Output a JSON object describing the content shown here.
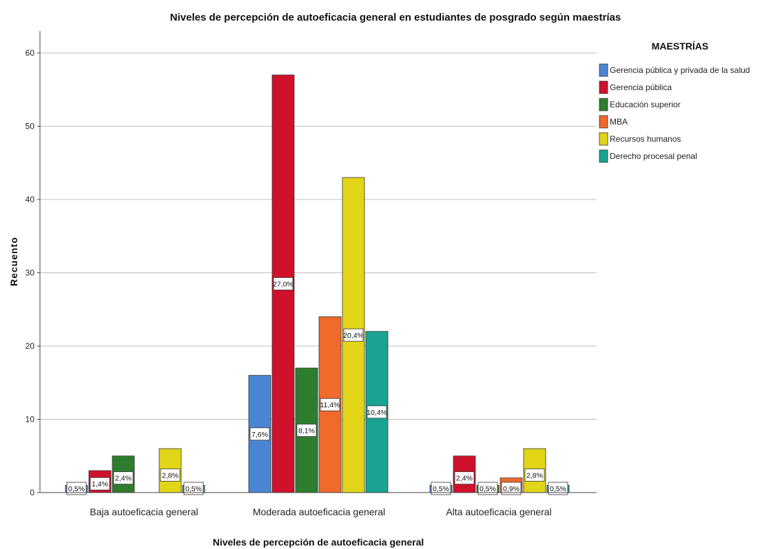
{
  "chart_data": {
    "type": "bar",
    "title": "Niveles de percepción de autoeficacia general en estudiantes de posgrado según maestrías",
    "xlabel": "Niveles de percepción de autoeficacia general",
    "ylabel": "Recuento",
    "ylim": [
      0,
      60
    ],
    "yticks": [
      0,
      10,
      20,
      30,
      40,
      50,
      60
    ],
    "grid": true,
    "legend_position": "top-right",
    "legend_title": "MAESTRÍAS",
    "categories": [
      "Baja autoeficacia general",
      "Moderada autoeficacia general",
      "Alta autoeficacia general"
    ],
    "series": [
      {
        "name": "Gerencia pública y privada de la salud",
        "color": "#4a86d4",
        "values": [
          1,
          16,
          1
        ],
        "labels": [
          "0,5%",
          "7,6%",
          "0,5%"
        ]
      },
      {
        "name": "Gerencia pública",
        "color": "#d0112b",
        "values": [
          3,
          57,
          5
        ],
        "labels": [
          "1,4%",
          "27,0%",
          "2,4%"
        ]
      },
      {
        "name": "Educación superior",
        "color": "#2e7d2e",
        "values": [
          5,
          17,
          1
        ],
        "labels": [
          "2,4%",
          "8,1%",
          "0,5%"
        ]
      },
      {
        "name": "MBA",
        "color": "#ef6a2b",
        "values": [
          0,
          24,
          2
        ],
        "labels": [
          "",
          "11,4%",
          "0,9%"
        ]
      },
      {
        "name": "Recursos humanos",
        "color": "#e2d518",
        "values": [
          6,
          43,
          6
        ],
        "labels": [
          "2,8%",
          "20,4%",
          "2,8%"
        ]
      },
      {
        "name": "Derecho procesal penal",
        "color": "#1aa391",
        "values": [
          1,
          22,
          1
        ],
        "labels": [
          "0,5%",
          "10,4%",
          "0,5%"
        ]
      }
    ]
  }
}
